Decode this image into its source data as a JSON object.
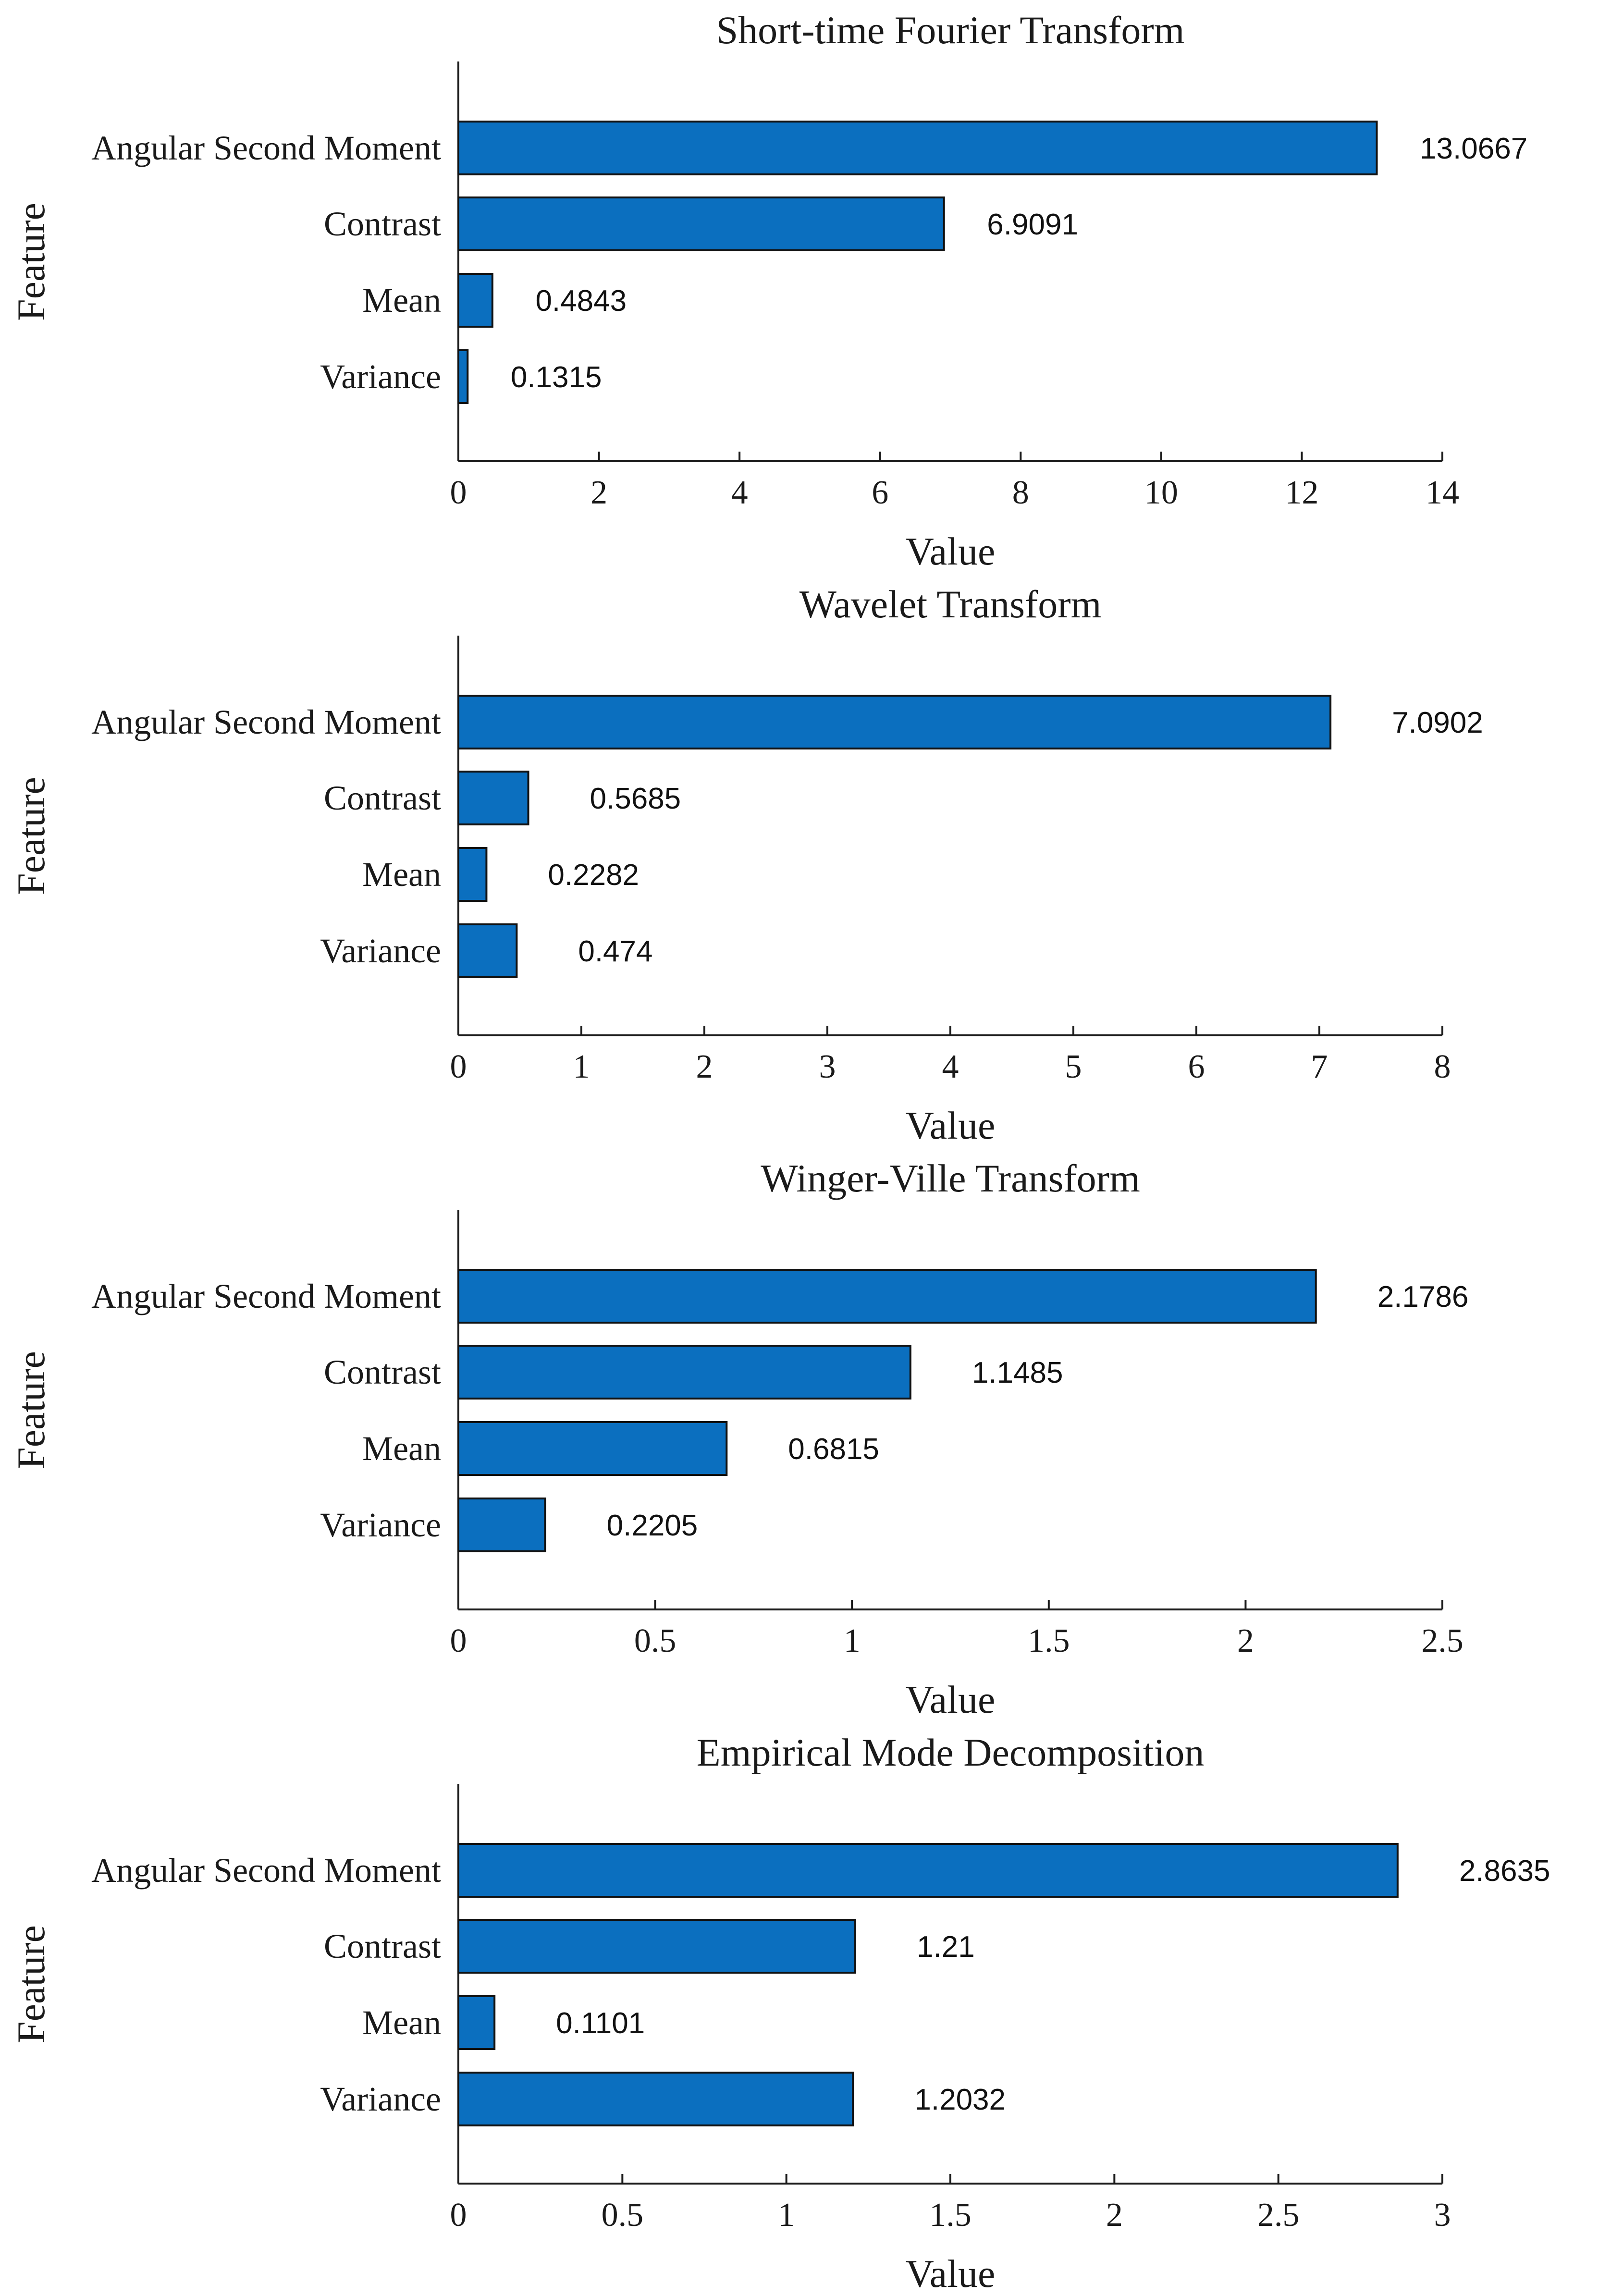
{
  "chart_data": [
    {
      "type": "bar",
      "orientation": "horizontal",
      "title": "Short-time Fourier Transform",
      "xlabel": "Value",
      "ylabel": "Feature",
      "categories": [
        "Angular Second Moment",
        "Contrast",
        "Mean",
        "Variance"
      ],
      "values": [
        13.0667,
        6.9091,
        0.4843,
        0.1315
      ],
      "value_labels": [
        "13.0667",
        "6.9091",
        "0.4843",
        "0.1315"
      ],
      "xlim": [
        0,
        14
      ],
      "xticks": [
        0,
        2,
        4,
        6,
        8,
        10,
        12,
        14
      ],
      "xtick_labels": [
        "0",
        "2",
        "4",
        "6",
        "8",
        "10",
        "12",
        "14"
      ],
      "grid": false,
      "color": "#0b6fbf"
    },
    {
      "type": "bar",
      "orientation": "horizontal",
      "title": "Wavelet Transform",
      "xlabel": "Value",
      "ylabel": "Feature",
      "categories": [
        "Angular Second Moment",
        "Contrast",
        "Mean",
        "Variance"
      ],
      "values": [
        7.0902,
        0.5685,
        0.2282,
        0.474
      ],
      "value_labels": [
        "7.0902",
        "0.5685",
        "0.2282",
        "0.474"
      ],
      "xlim": [
        0,
        8
      ],
      "xticks": [
        0,
        1,
        2,
        3,
        4,
        5,
        6,
        7,
        8
      ],
      "xtick_labels": [
        "0",
        "1",
        "2",
        "3",
        "4",
        "5",
        "6",
        "7",
        "8"
      ],
      "grid": false,
      "color": "#0b6fbf"
    },
    {
      "type": "bar",
      "orientation": "horizontal",
      "title": "Winger-Ville Transform",
      "xlabel": "Value",
      "ylabel": "Feature",
      "categories": [
        "Angular Second Moment",
        "Contrast",
        "Mean",
        "Variance"
      ],
      "values": [
        2.1786,
        1.1485,
        0.6815,
        0.2205
      ],
      "value_labels": [
        "2.1786",
        "1.1485",
        "0.6815",
        "0.2205"
      ],
      "xlim": [
        0,
        2.5
      ],
      "xticks": [
        0,
        0.5,
        1,
        1.5,
        2,
        2.5
      ],
      "xtick_labels": [
        "0",
        "0.5",
        "1",
        "1.5",
        "2",
        "2.5"
      ],
      "grid": false,
      "color": "#0b6fbf"
    },
    {
      "type": "bar",
      "orientation": "horizontal",
      "title": "Empirical Mode Decomposition",
      "xlabel": "Value",
      "ylabel": "Feature",
      "categories": [
        "Angular Second Moment",
        "Contrast",
        "Mean",
        "Variance"
      ],
      "values": [
        2.8635,
        1.21,
        0.1101,
        1.2032
      ],
      "value_labels": [
        "2.8635",
        "1.21",
        "0.1101",
        "1.2032"
      ],
      "xlim": [
        0,
        3
      ],
      "xticks": [
        0,
        0.5,
        1,
        1.5,
        2,
        2.5,
        3
      ],
      "xtick_labels": [
        "0",
        "0.5",
        "1",
        "1.5",
        "2",
        "2.5",
        "3"
      ],
      "grid": false,
      "color": "#0b6fbf"
    }
  ]
}
